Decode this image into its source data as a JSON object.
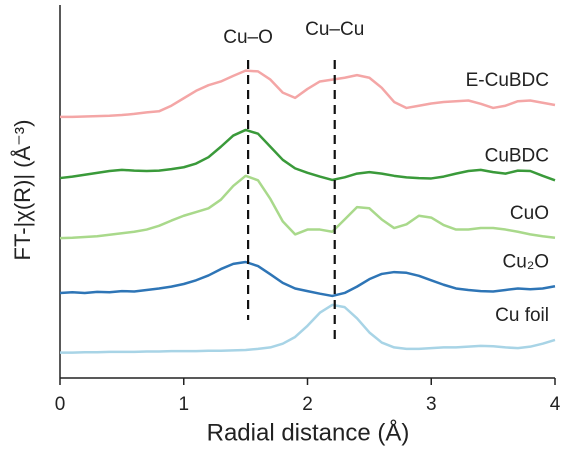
{
  "chart_data": {
    "type": "line",
    "xlabel": "Radial distance (Å)",
    "ylabel": "FT-|χ(R)| (Å⁻³)",
    "x": [
      0,
      0.1,
      0.2,
      0.3,
      0.4,
      0.5,
      0.6,
      0.7,
      0.8,
      0.9,
      1,
      1.1,
      1.2,
      1.3,
      1.4,
      1.5,
      1.6,
      1.7,
      1.8,
      1.9,
      2,
      2.1,
      2.2,
      2.3,
      2.4,
      2.5,
      2.6,
      2.7,
      2.8,
      2.9,
      3,
      3.1,
      3.2,
      3.3,
      3.4,
      3.5,
      3.6,
      3.7,
      3.8,
      3.9,
      4
    ],
    "xlim": [
      0,
      4
    ],
    "xticks": [
      0,
      1,
      2,
      3,
      4
    ],
    "ylim": [
      0,
      10
    ],
    "annotations": [
      {
        "text": "Cu–O",
        "x": 1.52
      },
      {
        "text": "Cu–Cu",
        "x": 2.22
      }
    ],
    "series": [
      {
        "name": "E-CuBDC",
        "color": "#f4a6a6",
        "values": [
          7.0,
          7.0,
          7.01,
          7.02,
          7.03,
          7.05,
          7.08,
          7.12,
          7.15,
          7.3,
          7.5,
          7.7,
          7.85,
          7.95,
          8.1,
          8.24,
          8.22,
          8.0,
          7.65,
          7.51,
          7.75,
          7.95,
          8.0,
          8.05,
          8.12,
          8.05,
          7.78,
          7.4,
          7.24,
          7.3,
          7.36,
          7.4,
          7.42,
          7.44,
          7.35,
          7.24,
          7.3,
          7.42,
          7.44,
          7.38,
          7.32
        ]
      },
      {
        "name": "CuBDC",
        "color": "#3a9a3a",
        "values": [
          5.36,
          5.4,
          5.45,
          5.5,
          5.55,
          5.58,
          5.56,
          5.55,
          5.56,
          5.6,
          5.65,
          5.75,
          5.92,
          6.2,
          6.5,
          6.65,
          6.55,
          6.2,
          5.85,
          5.62,
          5.5,
          5.4,
          5.31,
          5.38,
          5.48,
          5.52,
          5.48,
          5.42,
          5.38,
          5.36,
          5.35,
          5.4,
          5.48,
          5.55,
          5.58,
          5.52,
          5.48,
          5.56,
          5.55,
          5.42,
          5.3
        ]
      },
      {
        "name": "CuO",
        "color": "#a9d98b",
        "values": [
          3.75,
          3.76,
          3.78,
          3.8,
          3.84,
          3.88,
          3.92,
          3.98,
          4.08,
          4.22,
          4.35,
          4.45,
          4.55,
          4.78,
          5.15,
          5.42,
          5.3,
          4.8,
          4.2,
          3.85,
          3.98,
          3.98,
          3.92,
          4.25,
          4.58,
          4.55,
          4.25,
          4.02,
          4.12,
          4.35,
          4.3,
          4.1,
          3.98,
          3.98,
          4.02,
          4.02,
          3.98,
          3.92,
          3.85,
          3.8,
          3.76
        ]
      },
      {
        "name": "Cu₂O",
        "color": "#2e75b6",
        "values": [
          2.28,
          2.3,
          2.28,
          2.31,
          2.3,
          2.33,
          2.32,
          2.36,
          2.4,
          2.45,
          2.52,
          2.62,
          2.75,
          2.92,
          3.06,
          3.11,
          3.0,
          2.78,
          2.55,
          2.4,
          2.33,
          2.26,
          2.2,
          2.28,
          2.45,
          2.65,
          2.79,
          2.84,
          2.82,
          2.74,
          2.62,
          2.5,
          2.4,
          2.36,
          2.33,
          2.32,
          2.36,
          2.4,
          2.38,
          2.4,
          2.46
        ]
      },
      {
        "name": "Cu foil",
        "color": "#a8d4e6",
        "values": [
          0.68,
          0.68,
          0.69,
          0.69,
          0.7,
          0.7,
          0.7,
          0.71,
          0.71,
          0.72,
          0.72,
          0.72,
          0.73,
          0.73,
          0.74,
          0.75,
          0.78,
          0.82,
          0.92,
          1.1,
          1.4,
          1.75,
          1.96,
          1.9,
          1.6,
          1.22,
          0.95,
          0.82,
          0.78,
          0.78,
          0.8,
          0.82,
          0.82,
          0.84,
          0.86,
          0.85,
          0.82,
          0.8,
          0.84,
          0.92,
          1.02
        ]
      }
    ]
  }
}
